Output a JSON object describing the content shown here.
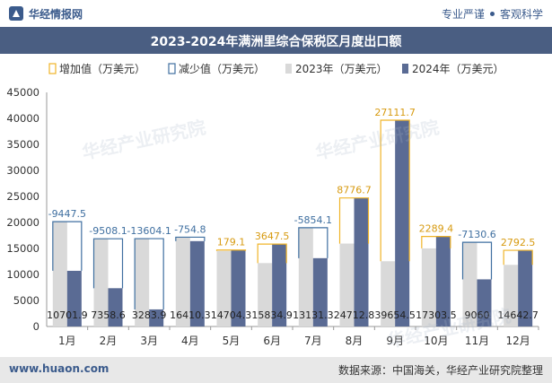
{
  "header": {
    "logo_text": "华经情报网",
    "slogan_left": "专业严谨",
    "slogan_right": "客观科学"
  },
  "footer": {
    "website": "www.huaon.com",
    "source": "数据来源：中国海关，华经产业研究院整理"
  },
  "watermark": "华经产业研究院",
  "colors": {
    "y2023": "#d9d9d9",
    "y2024": "#5a6b94",
    "increase": "#f0b428",
    "decrease": "#3f6fa0",
    "title_bg": "#4a5e82"
  },
  "chart_data": {
    "type": "bar",
    "title": "2023-2024年满洲里综合保税区月度出口额",
    "categories": [
      "1月",
      "2月",
      "3月",
      "4月",
      "5月",
      "6月",
      "7月",
      "8月",
      "9月",
      "10月",
      "11月",
      "12月"
    ],
    "legend": [
      "增加值（万美元）",
      "减少值（万美元）",
      "2023年（万美元）",
      "2024年（万美元）"
    ],
    "series": [
      {
        "name": "2023年（万美元）",
        "values": [
          20149.4,
          16866.7,
          16887.8,
          17165.1,
          14525.2,
          12187.0,
          18985.4,
          15936.1,
          12542.8,
          15014.0,
          16190.6,
          11850.0
        ]
      },
      {
        "name": "2024年（万美元）",
        "values": [
          10701.9,
          7358.6,
          3283.9,
          16410.3,
          14704.3,
          15834.9,
          13131.3,
          24712.8,
          39654.5,
          17303.5,
          9060,
          14642.7
        ]
      }
    ],
    "change_labels": [
      "-9447.5",
      "-9508.1",
      "-13604.1",
      "-754.8",
      "179.1",
      "3647.5",
      "-5854.1",
      "8776.7",
      "27111.7",
      "2289.4",
      "-7130.6",
      "2792.5"
    ],
    "value_labels": [
      "10701.9",
      "7358.6",
      "3283.9",
      "16410.3",
      "14704.3",
      "15834.9",
      "13131.3",
      "24712.8",
      "39654.5",
      "17303.5",
      "9060",
      "14642.7"
    ],
    "yticks": [
      "0",
      "5000",
      "10000",
      "15000",
      "20000",
      "25000",
      "30000",
      "35000",
      "40000",
      "45000"
    ],
    "ylim": [
      0,
      45000
    ],
    "grid": false,
    "legend_position": "top"
  }
}
